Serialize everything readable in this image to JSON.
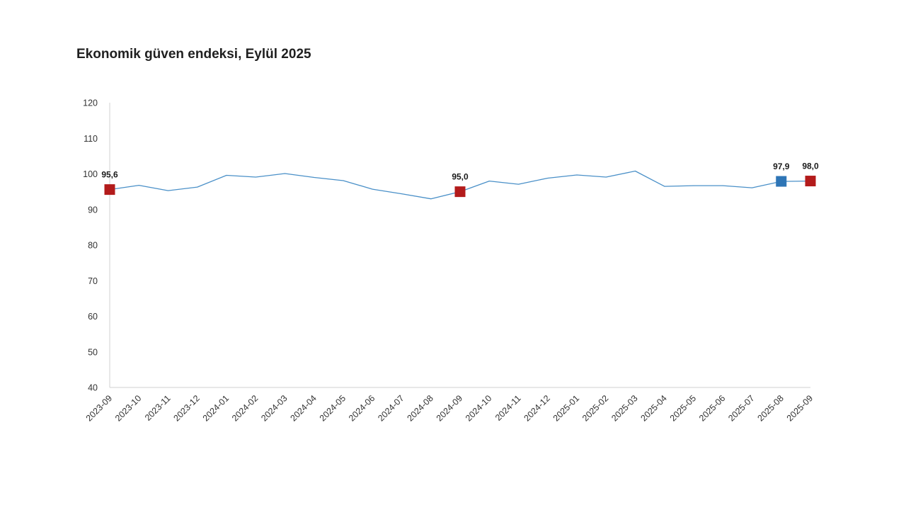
{
  "chart_data": {
    "type": "line",
    "title": "Ekonomik güven endeksi, Eylül 2025",
    "xlabel": "",
    "ylabel": "",
    "ylim": [
      40,
      120
    ],
    "yticks": [
      "120",
      "110",
      "100",
      "90",
      "80",
      "70",
      "60",
      "50",
      "40"
    ],
    "grid": false,
    "categories": [
      "2023-09",
      "2023-10",
      "2023-11",
      "2023-12",
      "2024-01",
      "2024-02",
      "2024-03",
      "2024-04",
      "2024-05",
      "2024-06",
      "2024-07",
      "2024-08",
      "2024-09",
      "2024-10",
      "2024-11",
      "2024-12",
      "2025-01",
      "2025-02",
      "2025-03",
      "2025-04",
      "2025-05",
      "2025-06",
      "2025-07",
      "2025-08",
      "2025-09"
    ],
    "series": [
      {
        "name": "Ekonomik güven endeksi",
        "color": "#4a90c8",
        "values": [
          95.6,
          96.8,
          95.3,
          96.3,
          99.6,
          99.1,
          100.1,
          99.0,
          98.1,
          95.7,
          94.4,
          93.0,
          95.0,
          98.0,
          97.1,
          98.8,
          99.7,
          99.1,
          100.8,
          96.5,
          96.7,
          96.7,
          96.1,
          97.9,
          98.0
        ]
      }
    ],
    "highlights": [
      {
        "category": "2023-09",
        "value": 95.6,
        "label": "95,6",
        "color": "#b31b1b"
      },
      {
        "category": "2024-09",
        "value": 95.0,
        "label": "95,0",
        "color": "#b31b1b"
      },
      {
        "category": "2025-08",
        "value": 97.9,
        "label": "97,9",
        "color": "#2e75b6"
      },
      {
        "category": "2025-09",
        "value": 98.0,
        "label": "98,0",
        "color": "#b31b1b"
      }
    ],
    "axis_color": "#d0d0d0"
  }
}
